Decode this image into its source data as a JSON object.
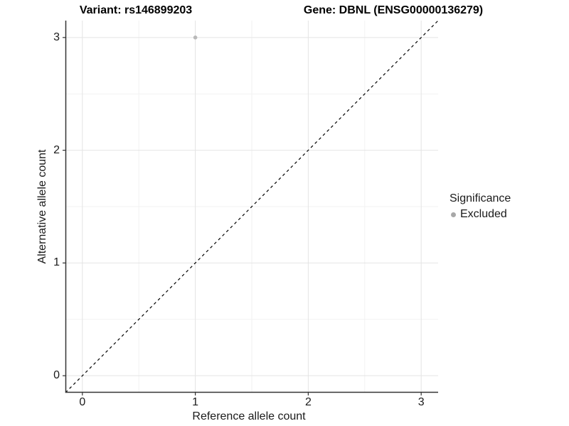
{
  "chart_data": {
    "type": "scatter",
    "title_left": "Variant: rs146899203",
    "title_right": "Gene: DBNL (ENSG00000136279)",
    "xlabel": "Reference allele count",
    "ylabel": "Alternative allele count",
    "xlim": [
      -0.15,
      3.15
    ],
    "ylim": [
      -0.15,
      3.15
    ],
    "x_ticks": [
      0,
      1,
      2,
      3
    ],
    "y_ticks": [
      0,
      1,
      2,
      3
    ],
    "grid": true,
    "reference_line": {
      "type": "identity",
      "style": "dashed",
      "color": "#000000",
      "dash": [
        4,
        4
      ]
    },
    "series": [
      {
        "name": "Excluded",
        "color": "#b9b9b9",
        "points": [
          {
            "x": 1,
            "y": 3
          }
        ],
        "point_radius": 2.8
      }
    ],
    "legend": {
      "position": "right",
      "title": "Significance",
      "entries": [
        {
          "label": "Excluded",
          "color": "#a8a8a8"
        }
      ]
    },
    "colors": {
      "background": "#ffffff",
      "grid_major": "#e4e4e4",
      "grid_minor": "#f2f2f2",
      "axis_line": "#333333",
      "tick_mark": "#333333",
      "tick_text": "#1a1a1a",
      "title_text": "#000000"
    }
  }
}
